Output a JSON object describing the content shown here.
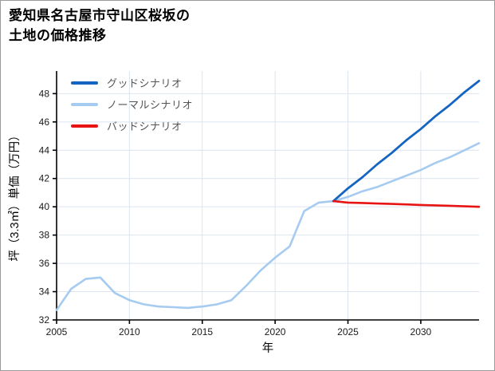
{
  "page": {
    "title_line1": "愛知県名古屋市守山区桜坂の",
    "title_line2": "土地の価格推移"
  },
  "chart_data": {
    "type": "line",
    "title": "愛知県名古屋市守山区桜坂の土地の価格推移",
    "xlabel": "年",
    "ylabel": "坪（3.3㎡）単価（万円）",
    "xlim": [
      2005,
      2034
    ],
    "ylim": [
      32,
      49.6
    ],
    "xticks": [
      2005,
      2010,
      2015,
      2020,
      2025,
      2030
    ],
    "yticks": [
      32,
      34,
      36,
      38,
      40,
      42,
      44,
      46,
      48
    ],
    "grid": true,
    "legend_position": "top-left",
    "legend": [
      {
        "label": "グッドシナリオ",
        "series": "good"
      },
      {
        "label": "ノーマルシナリオ",
        "series": "normal"
      },
      {
        "label": "バッドシナリオ",
        "series": "bad"
      }
    ],
    "series": [
      {
        "key": "normal",
        "name": "ノーマルシナリオ",
        "color": "#a6cbf0",
        "width": 2.6,
        "x": [
          2005,
          2006,
          2007,
          2008,
          2009,
          2010,
          2011,
          2012,
          2013,
          2014,
          2015,
          2016,
          2017,
          2018,
          2019,
          2020,
          2021,
          2022,
          2023,
          2024,
          2025,
          2026,
          2027,
          2028,
          2029,
          2030,
          2031,
          2032,
          2033,
          2034
        ],
        "values": [
          32.7,
          34.2,
          34.9,
          35.0,
          33.9,
          33.4,
          33.1,
          32.95,
          32.9,
          32.85,
          32.95,
          33.1,
          33.4,
          34.4,
          35.5,
          36.4,
          37.2,
          39.7,
          40.3,
          40.4,
          40.7,
          41.1,
          41.4,
          41.8,
          42.2,
          42.6,
          43.1,
          43.5,
          44.0,
          44.5
        ]
      },
      {
        "key": "good",
        "name": "グッドシナリオ",
        "color": "#1565c0",
        "width": 2.8,
        "x": [
          2024,
          2025,
          2026,
          2027,
          2028,
          2029,
          2030,
          2031,
          2032,
          2033,
          2034
        ],
        "values": [
          40.4,
          41.3,
          42.1,
          43.0,
          43.8,
          44.7,
          45.5,
          46.4,
          47.2,
          48.1,
          48.9
        ]
      },
      {
        "key": "bad",
        "name": "バッドシナリオ",
        "color": "#e81313",
        "width": 2.6,
        "x": [
          2024,
          2025,
          2026,
          2027,
          2028,
          2029,
          2030,
          2031,
          2032,
          2033,
          2034
        ],
        "values": [
          40.4,
          40.3,
          40.27,
          40.23,
          40.2,
          40.17,
          40.13,
          40.1,
          40.07,
          40.03,
          40.0
        ]
      }
    ]
  }
}
